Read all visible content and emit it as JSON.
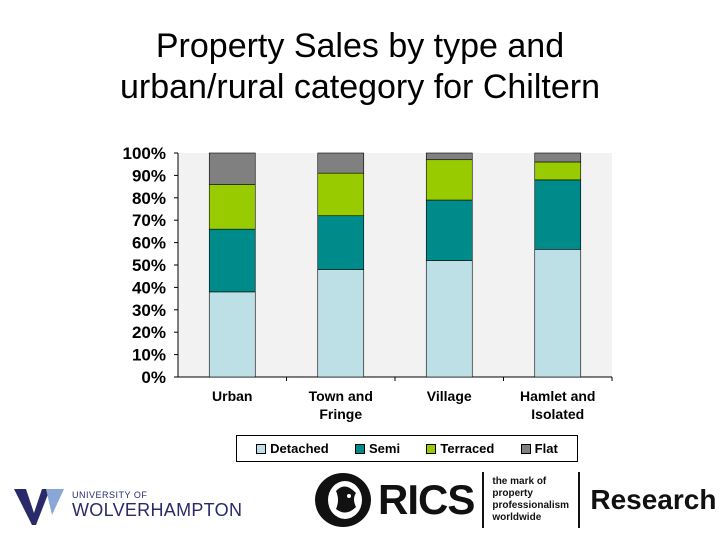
{
  "title_lines": [
    "Property Sales by type and",
    "urban/rural category for Chiltern"
  ],
  "chart_data": {
    "type": "bar",
    "stacked": true,
    "percent": true,
    "categories": [
      [
        "Urban"
      ],
      [
        "Town and",
        "Fringe"
      ],
      [
        "Village"
      ],
      [
        "Hamlet and",
        "Isolated"
      ]
    ],
    "series": [
      {
        "name": "Detached",
        "color": "#bde0e6",
        "values": [
          38,
          48,
          52,
          57
        ]
      },
      {
        "name": "Semi",
        "color": "#008b8b",
        "values": [
          28,
          24,
          27,
          31
        ]
      },
      {
        "name": "Terraced",
        "color": "#99cc00",
        "values": [
          20,
          19,
          18,
          8
        ]
      },
      {
        "name": "Flat",
        "color": "#808080",
        "values": [
          14,
          9,
          3,
          4
        ]
      }
    ],
    "y_ticks": [
      "0%",
      "10%",
      "20%",
      "30%",
      "40%",
      "50%",
      "60%",
      "70%",
      "80%",
      "90%",
      "100%"
    ],
    "ylim": [
      0,
      100
    ],
    "grid": false,
    "legend_position": "bottom"
  },
  "footer": {
    "wlv_small": "UNIVERSITY OF",
    "wlv_big": "WOLVERHAMPTON",
    "rics_word": "RICS",
    "rics_tagline": [
      "the mark of",
      "property",
      "professionalism",
      "worldwide"
    ],
    "research_word": "Research"
  }
}
